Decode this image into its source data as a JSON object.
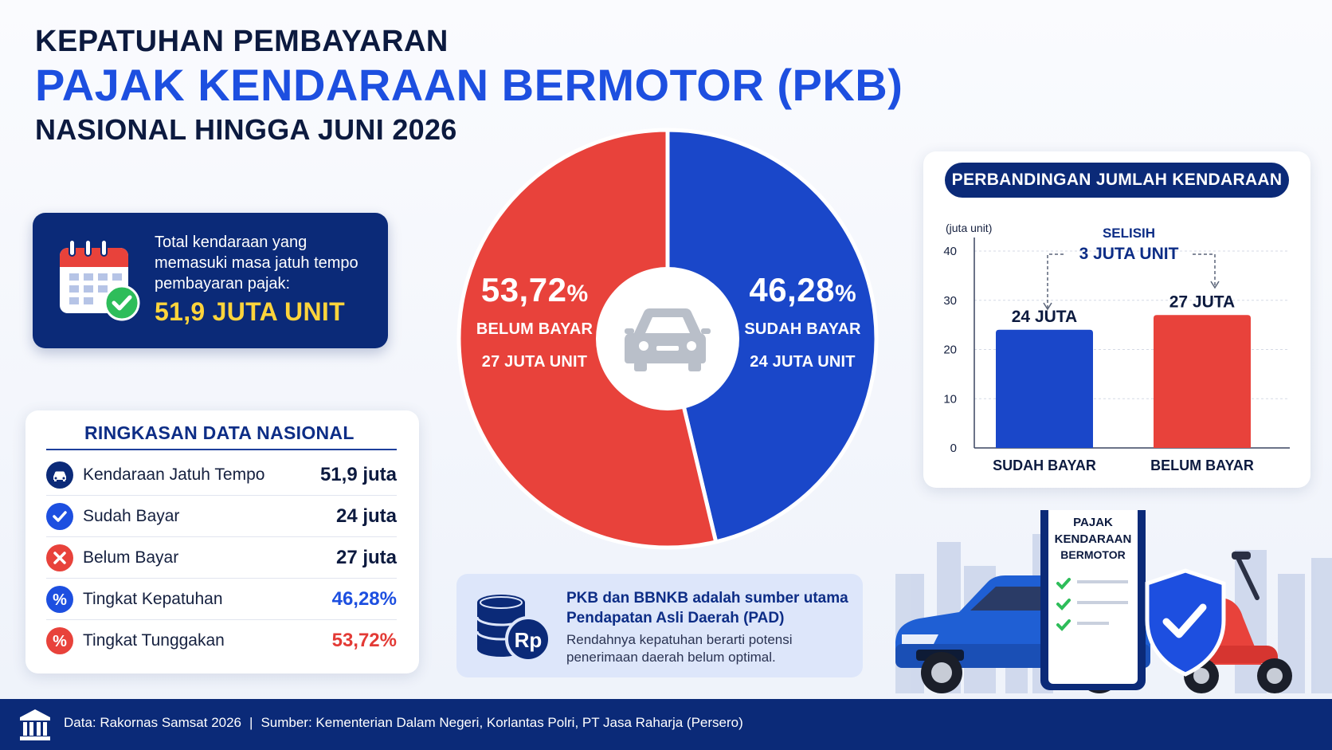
{
  "title": {
    "line1": "KEPATUHAN PEMBAYARAN",
    "line2": "PAJAK KENDARAAN BERMOTOR (PKB)",
    "line3": "NASIONAL HINGGA JUNI 2026"
  },
  "info_card": {
    "text": "Total kendaraan yang memasuki masa jatuh tempo pembayaran pajak:",
    "value": "51,9 JUTA UNIT"
  },
  "summary": {
    "title": "RINGKASAN DATA NASIONAL",
    "rows": [
      {
        "label": "Kendaraan Jatuh Tempo",
        "value": "51,9 juta",
        "icon": "car-icon"
      },
      {
        "label": "Sudah Bayar",
        "value": "24 juta",
        "icon": "check-icon"
      },
      {
        "label": "Belum Bayar",
        "value": "27 juta",
        "icon": "cross-icon"
      },
      {
        "label": "Tingkat Kepatuhan",
        "value": "46,28%",
        "icon": "percent-icon"
      },
      {
        "label": "Tingkat Tunggakan",
        "value": "53,72%",
        "icon": "percent-icon"
      }
    ]
  },
  "pad_card": {
    "line1": "PKB dan BBNKB adalah sumber utama Pendapatan Asli Daerah (PAD)",
    "line2": "Rendahnya kepatuhan berarti potensi penerimaan daerah belum optimal.",
    "icon_text": "Rp"
  },
  "scene": {
    "clipboard_line1": "PAJAK",
    "clipboard_line2": "KENDARAAN",
    "clipboard_line3": "BERMOTOR"
  },
  "footer": {
    "data": "Data: Rakornas Samsat 2026",
    "separator": "|",
    "source": "Sumber: Kementerian Dalam Negeri, Korlantas Polri, PT Jasa Raharja (Persero)"
  },
  "colors": {
    "navy": "#0b2a78",
    "blue": "#1d4fe0",
    "red": "#e8423b",
    "yellow": "#ffd43b"
  },
  "chart_data": [
    {
      "type": "pie",
      "slices": [
        {
          "label": "SUDAH BAYAR",
          "value": 46.28,
          "pct_text": "46,28",
          "pct_sign": "%",
          "units": "24 JUTA UNIT",
          "color": "#1a47c9"
        },
        {
          "label": "BELUM BAYAR",
          "value": 53.72,
          "pct_text": "53,72",
          "pct_sign": "%",
          "units": "27 JUTA UNIT",
          "color": "#e8423b"
        }
      ],
      "center_icon": "car-icon"
    },
    {
      "type": "bar",
      "title": "PERBANDINGAN JUMLAH KENDARAAN",
      "ylabel": "(juta unit)",
      "categories": [
        "SUDAH BAYAR",
        "BELUM BAYAR"
      ],
      "values": [
        24,
        27
      ],
      "value_labels": [
        "24 JUTA",
        "27 JUTA"
      ],
      "colors": [
        "#1a47c9",
        "#e8423b"
      ],
      "ylim": [
        0,
        40
      ],
      "yticks": [
        0,
        10,
        20,
        30,
        40
      ],
      "grid": true,
      "annotation": {
        "line1": "SELISIH",
        "line2": "3 JUTA UNIT"
      }
    }
  ]
}
